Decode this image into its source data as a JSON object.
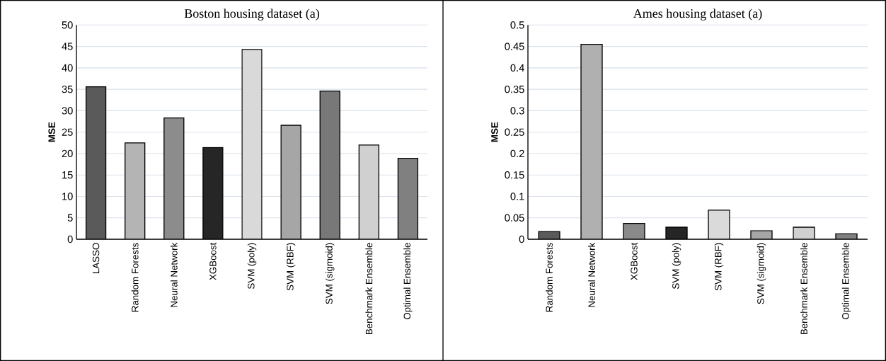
{
  "chart_data": [
    {
      "type": "bar",
      "title": "Boston housing dataset (a)",
      "ylabel": "MSE",
      "categories": [
        "LASSO",
        "Random Forests",
        "Neural Network",
        "XGBoost",
        "SVM (poly)",
        "SVM (RBF)",
        "SVM (sigmoid)",
        "Benchmark Ensemble",
        "Optimal Ensemble"
      ],
      "values": [
        35.6,
        22.5,
        28.3,
        21.4,
        44.3,
        26.6,
        34.6,
        22.0,
        18.9
      ],
      "colors": [
        "#5a5a5a",
        "#b4b4b4",
        "#8c8c8c",
        "#262626",
        "#d9d9d9",
        "#a6a6a6",
        "#787878",
        "#d0d0d0",
        "#808080"
      ],
      "ylim": [
        0,
        50
      ],
      "yticks": [
        0,
        5,
        10,
        15,
        20,
        25,
        30,
        35,
        40,
        45,
        50
      ],
      "grid": "y"
    },
    {
      "type": "bar",
      "title": "Ames housing dataset (a)",
      "ylabel": "MSE",
      "categories": [
        "Random Forests",
        "Neural Network",
        "XGBoost",
        "SVM (poly)",
        "SVM (RBF)",
        "SVM (sigmoid)",
        "Benchmark Ensemble",
        "Optimal Ensemble"
      ],
      "values": [
        0.018,
        0.455,
        0.037,
        0.028,
        0.068,
        0.02,
        0.028,
        0.013
      ],
      "colors": [
        "#5a5a5a",
        "#b0b0b0",
        "#8a8a8a",
        "#262626",
        "#dadada",
        "#a6a6a6",
        "#d0d0d0",
        "#808080"
      ],
      "ylim": [
        0,
        0.5
      ],
      "yticks": [
        0,
        0.05,
        0.1,
        0.15,
        0.2,
        0.25,
        0.3,
        0.35,
        0.4,
        0.45,
        0.5
      ],
      "grid": "y"
    }
  ]
}
